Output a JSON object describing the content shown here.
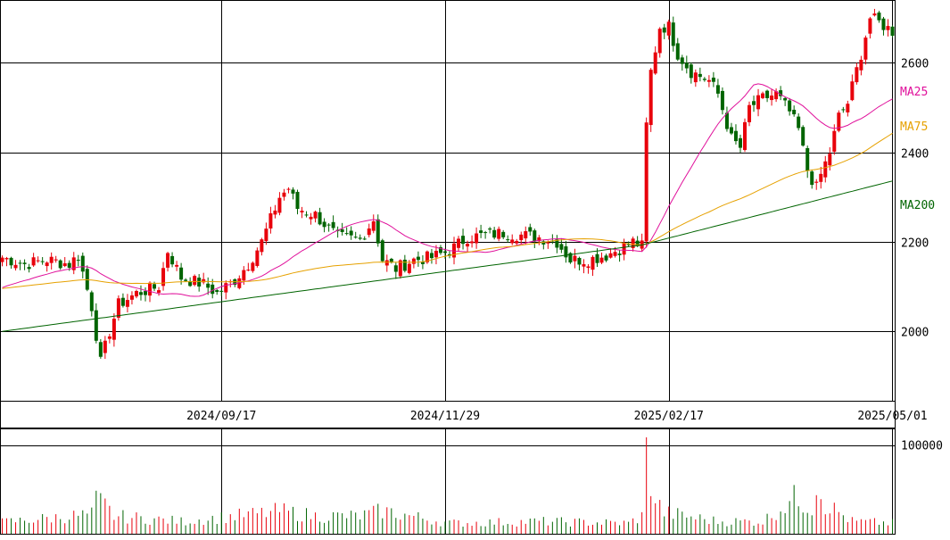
{
  "chart_data": {
    "type": "candlestick",
    "moving_averages": [
      {
        "name": "MA25",
        "color": "#e0109b"
      },
      {
        "name": "MA75",
        "color": "#e6a100"
      },
      {
        "name": "MA200",
        "color": "#006400"
      }
    ],
    "x_ticks": [
      {
        "label": "2024/09/17",
        "index": 49
      },
      {
        "label": "2024/11/29",
        "index": 99
      },
      {
        "label": "2025/02/17",
        "index": 149
      },
      {
        "label": "2025/05/01",
        "index": 199
      }
    ],
    "price_axis": {
      "ticks": [
        2000,
        2200,
        2400,
        2600
      ],
      "range": [
        1845,
        2740
      ],
      "grid": true
    },
    "volume_axis": {
      "ticks": [
        100000
      ],
      "tick_labels": [
        "100000"
      ],
      "range": [
        0,
        109000
      ]
    },
    "colors": {
      "up": "#e8000b",
      "down": "#006400",
      "grid": "#000000"
    },
    "price_anchors": [
      [
        0,
        2165
      ],
      [
        5,
        2150
      ],
      [
        10,
        2160
      ],
      [
        15,
        2150
      ],
      [
        17,
        2170
      ],
      [
        20,
        2055
      ],
      [
        22,
        1930
      ],
      [
        24,
        2000
      ],
      [
        26,
        2060
      ],
      [
        30,
        2085
      ],
      [
        35,
        2100
      ],
      [
        37,
        2180
      ],
      [
        40,
        2120
      ],
      [
        45,
        2105
      ],
      [
        48,
        2085
      ],
      [
        52,
        2115
      ],
      [
        55,
        2150
      ],
      [
        58,
        2200
      ],
      [
        62,
        2300
      ],
      [
        64,
        2320
      ],
      [
        66,
        2275
      ],
      [
        70,
        2260
      ],
      [
        75,
        2210
      ],
      [
        80,
        2205
      ],
      [
        83,
        2250
      ],
      [
        85,
        2160
      ],
      [
        88,
        2140
      ],
      [
        92,
        2160
      ],
      [
        96,
        2165
      ],
      [
        100,
        2180
      ],
      [
        104,
        2210
      ],
      [
        108,
        2215
      ],
      [
        112,
        2220
      ],
      [
        116,
        2215
      ],
      [
        120,
        2210
      ],
      [
        124,
        2200
      ],
      [
        127,
        2160
      ],
      [
        131,
        2160
      ],
      [
        135,
        2170
      ],
      [
        138,
        2185
      ],
      [
        141,
        2200
      ],
      [
        143,
        2190
      ],
      [
        144,
        2460
      ],
      [
        145,
        2580
      ],
      [
        147,
        2680
      ],
      [
        149,
        2680
      ],
      [
        151,
        2620
      ],
      [
        154,
        2580
      ],
      [
        158,
        2560
      ],
      [
        160,
        2530
      ],
      [
        163,
        2430
      ],
      [
        165,
        2410
      ],
      [
        167,
        2500
      ],
      [
        170,
        2520
      ],
      [
        173,
        2530
      ],
      [
        176,
        2490
      ],
      [
        178,
        2450
      ],
      [
        180,
        2360
      ],
      [
        182,
        2320
      ],
      [
        183,
        2350
      ],
      [
        185,
        2400
      ],
      [
        187,
        2480
      ],
      [
        189,
        2510
      ],
      [
        192,
        2620
      ],
      [
        194,
        2700
      ],
      [
        196,
        2690
      ],
      [
        199,
        2670
      ]
    ],
    "volume_anchors": [
      [
        0,
        13000
      ],
      [
        20,
        22000
      ],
      [
        21,
        38000
      ],
      [
        23,
        32000
      ],
      [
        25,
        20000
      ],
      [
        40,
        14000
      ],
      [
        60,
        24000
      ],
      [
        62,
        26000
      ],
      [
        70,
        20000
      ],
      [
        80,
        20000
      ],
      [
        85,
        26000
      ],
      [
        100,
        12000
      ],
      [
        120,
        14000
      ],
      [
        140,
        12000
      ],
      [
        143,
        20000
      ],
      [
        144,
        109000
      ],
      [
        145,
        60000
      ],
      [
        146,
        38000
      ],
      [
        148,
        24000
      ],
      [
        160,
        14000
      ],
      [
        170,
        14000
      ],
      [
        177,
        40000
      ],
      [
        181,
        30000
      ],
      [
        182,
        58000
      ],
      [
        184,
        34000
      ],
      [
        190,
        14000
      ],
      [
        199,
        12000
      ]
    ],
    "candle_count": 200
  }
}
